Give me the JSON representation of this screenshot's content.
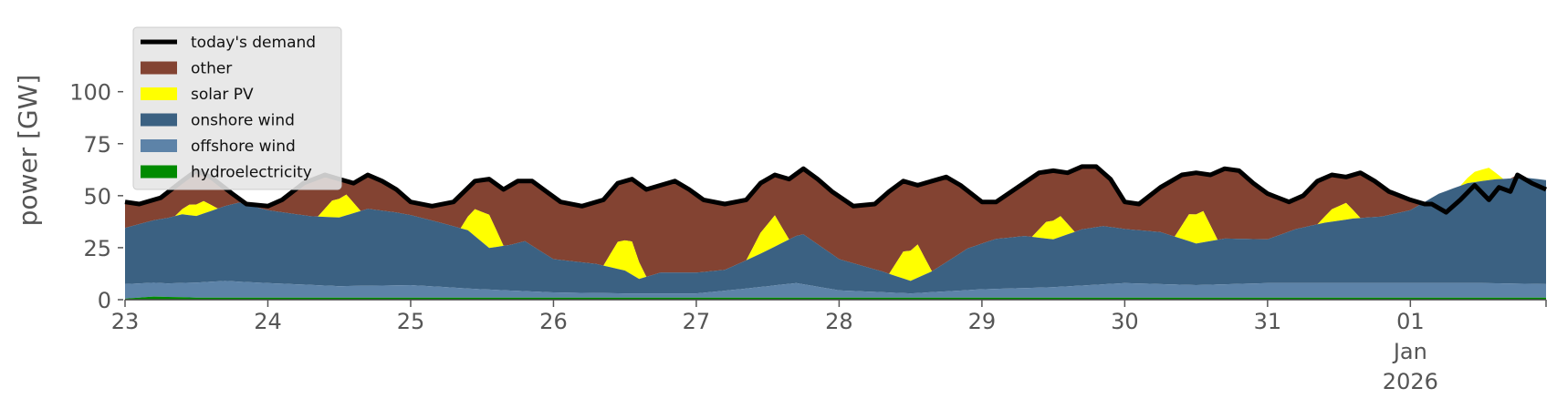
{
  "colors": {
    "demand": "#000000",
    "other": "#834332",
    "solar": "#ffff00",
    "onshore": "#3b6182",
    "offshore": "#5d83a8",
    "hydro": "#008b00",
    "tick_text": "#555555",
    "legend_bg": "#e5e5e5"
  },
  "chart_data": {
    "type": "area",
    "title": "",
    "xlabel": "",
    "ylabel": "power [GW]",
    "ylim": [
      0,
      120
    ],
    "yticks": [
      0,
      25,
      50,
      75,
      100
    ],
    "xlim": [
      0,
      9.95
    ],
    "xtick_labels": [
      {
        "x": 0,
        "lines": [
          "23"
        ]
      },
      {
        "x": 1,
        "lines": [
          "24"
        ]
      },
      {
        "x": 2,
        "lines": [
          "25"
        ]
      },
      {
        "x": 3,
        "lines": [
          "26"
        ]
      },
      {
        "x": 4,
        "lines": [
          "27"
        ]
      },
      {
        "x": 5,
        "lines": [
          "28"
        ]
      },
      {
        "x": 6,
        "lines": [
          "29"
        ]
      },
      {
        "x": 7,
        "lines": [
          "30"
        ]
      },
      {
        "x": 8,
        "lines": [
          "31"
        ]
      },
      {
        "x": 9,
        "lines": [
          "01",
          "Jan",
          "2026"
        ]
      }
    ],
    "grid": false,
    "legend_placement": "top-left",
    "legend": [
      {
        "label": "today's demand",
        "series": "demand",
        "kind": "line"
      },
      {
        "label": "other",
        "series": "other",
        "kind": "patch"
      },
      {
        "label": "solar PV",
        "series": "solar",
        "kind": "patch"
      },
      {
        "label": "onshore wind",
        "series": "onshore",
        "kind": "patch"
      },
      {
        "label": "offshore wind",
        "series": "offshore",
        "kind": "patch"
      },
      {
        "label": "hydroelectricity",
        "series": "hydro",
        "kind": "patch"
      }
    ],
    "stacked_areas_order": [
      "hydro",
      "offshore",
      "onshore",
      "solar",
      "other"
    ],
    "series": {
      "demand": [
        [
          0,
          47
        ],
        [
          0.1,
          46
        ],
        [
          0.25,
          49
        ],
        [
          0.4,
          57
        ],
        [
          0.5,
          62
        ],
        [
          0.6,
          59
        ],
        [
          0.75,
          51
        ],
        [
          0.85,
          46
        ],
        [
          1.0,
          45
        ],
        [
          1.1,
          48
        ],
        [
          1.25,
          56
        ],
        [
          1.4,
          60
        ],
        [
          1.5,
          58
        ],
        [
          1.6,
          56
        ],
        [
          1.7,
          60
        ],
        [
          1.8,
          57
        ],
        [
          1.9,
          53
        ],
        [
          2.0,
          47
        ],
        [
          2.15,
          45
        ],
        [
          2.3,
          47
        ],
        [
          2.45,
          57
        ],
        [
          2.55,
          58
        ],
        [
          2.65,
          53
        ],
        [
          2.75,
          57
        ],
        [
          2.85,
          57
        ],
        [
          2.95,
          52
        ],
        [
          3.05,
          47
        ],
        [
          3.2,
          45
        ],
        [
          3.35,
          48
        ],
        [
          3.45,
          56
        ],
        [
          3.55,
          58
        ],
        [
          3.65,
          53
        ],
        [
          3.75,
          55
        ],
        [
          3.85,
          57
        ],
        [
          3.95,
          53
        ],
        [
          4.05,
          48
        ],
        [
          4.2,
          46
        ],
        [
          4.35,
          48
        ],
        [
          4.45,
          56
        ],
        [
          4.55,
          60
        ],
        [
          4.65,
          58
        ],
        [
          4.75,
          63
        ],
        [
          4.85,
          58
        ],
        [
          4.95,
          52
        ],
        [
          5.1,
          45
        ],
        [
          5.25,
          46
        ],
        [
          5.35,
          52
        ],
        [
          5.45,
          57
        ],
        [
          5.55,
          55
        ],
        [
          5.65,
          57
        ],
        [
          5.75,
          59
        ],
        [
          5.85,
          55
        ],
        [
          6.0,
          47
        ],
        [
          6.1,
          47
        ],
        [
          6.25,
          54
        ],
        [
          6.4,
          61
        ],
        [
          6.5,
          62
        ],
        [
          6.6,
          61
        ],
        [
          6.7,
          64
        ],
        [
          6.8,
          64
        ],
        [
          6.9,
          58
        ],
        [
          7.0,
          47
        ],
        [
          7.1,
          46
        ],
        [
          7.25,
          54
        ],
        [
          7.4,
          60
        ],
        [
          7.5,
          61
        ],
        [
          7.6,
          60
        ],
        [
          7.7,
          63
        ],
        [
          7.8,
          62
        ],
        [
          7.9,
          56
        ],
        [
          8.0,
          51
        ],
        [
          8.15,
          47
        ],
        [
          8.25,
          50
        ],
        [
          8.35,
          57
        ],
        [
          8.45,
          60
        ],
        [
          8.55,
          59
        ],
        [
          8.65,
          61
        ],
        [
          8.75,
          57
        ],
        [
          8.85,
          52
        ],
        [
          9.0,
          48
        ],
        [
          9.1,
          46
        ],
        [
          9.15,
          46
        ],
        [
          9.25,
          42
        ],
        [
          9.35,
          48
        ],
        [
          9.45,
          55
        ],
        [
          9.55,
          48
        ],
        [
          9.62,
          54
        ],
        [
          9.7,
          52
        ],
        [
          9.75,
          60
        ],
        [
          9.85,
          56
        ],
        [
          9.95,
          53
        ]
      ],
      "hydro": [
        [
          0,
          0.5
        ],
        [
          0.2,
          1.5
        ],
        [
          0.5,
          1
        ],
        [
          1.0,
          1
        ],
        [
          2.0,
          1
        ],
        [
          3.0,
          1
        ],
        [
          4.0,
          1
        ],
        [
          5.0,
          1
        ],
        [
          6.0,
          1
        ],
        [
          7.0,
          1
        ],
        [
          8.0,
          1
        ],
        [
          9.0,
          1
        ],
        [
          9.95,
          1
        ]
      ],
      "offshore": [
        [
          0,
          7
        ],
        [
          0.3,
          6.5
        ],
        [
          0.7,
          8
        ],
        [
          1.0,
          7
        ],
        [
          1.5,
          5.5
        ],
        [
          2.0,
          6
        ],
        [
          2.5,
          4
        ],
        [
          3.0,
          2.5
        ],
        [
          3.5,
          2
        ],
        [
          4.0,
          2
        ],
        [
          4.3,
          4
        ],
        [
          4.7,
          7
        ],
        [
          5.0,
          3.5
        ],
        [
          5.5,
          2
        ],
        [
          6.0,
          4
        ],
        [
          6.5,
          5
        ],
        [
          7.0,
          7
        ],
        [
          7.5,
          6
        ],
        [
          8.0,
          7
        ],
        [
          8.5,
          7
        ],
        [
          9.0,
          7
        ],
        [
          9.5,
          7
        ],
        [
          9.95,
          6.5
        ]
      ],
      "onshore": [
        [
          0,
          27
        ],
        [
          0.4,
          33
        ],
        [
          0.5,
          32
        ],
        [
          0.65,
          35
        ],
        [
          0.8,
          38
        ],
        [
          1.0,
          35
        ],
        [
          1.3,
          33
        ],
        [
          1.5,
          33
        ],
        [
          1.7,
          37
        ],
        [
          1.9,
          35
        ],
        [
          2.2,
          31
        ],
        [
          2.4,
          28
        ],
        [
          2.55,
          20
        ],
        [
          2.7,
          22
        ],
        [
          2.8,
          24
        ],
        [
          3.0,
          16
        ],
        [
          3.3,
          14
        ],
        [
          3.5,
          11
        ],
        [
          3.6,
          7
        ],
        [
          3.75,
          10
        ],
        [
          4.0,
          10
        ],
        [
          4.2,
          10
        ],
        [
          4.45,
          16
        ],
        [
          4.6,
          20
        ],
        [
          4.75,
          24
        ],
        [
          5.0,
          15
        ],
        [
          5.3,
          10
        ],
        [
          5.5,
          6
        ],
        [
          5.65,
          10
        ],
        [
          5.9,
          20
        ],
        [
          6.1,
          24
        ],
        [
          6.3,
          25
        ],
        [
          6.5,
          23
        ],
        [
          6.7,
          27
        ],
        [
          6.85,
          28
        ],
        [
          7.0,
          26
        ],
        [
          7.25,
          25
        ],
        [
          7.5,
          20
        ],
        [
          7.7,
          22
        ],
        [
          8.0,
          21
        ],
        [
          8.2,
          26
        ],
        [
          8.4,
          29
        ],
        [
          8.6,
          31
        ],
        [
          8.8,
          32
        ],
        [
          9.0,
          35
        ],
        [
          9.2,
          43
        ],
        [
          9.4,
          48
        ],
        [
          9.6,
          50
        ],
        [
          9.8,
          51
        ],
        [
          9.95,
          50
        ]
      ],
      "solar": [
        [
          0,
          0
        ],
        [
          0.35,
          0
        ],
        [
          0.45,
          5
        ],
        [
          0.55,
          6
        ],
        [
          0.65,
          0
        ],
        [
          1.35,
          0
        ],
        [
          1.45,
          8
        ],
        [
          1.55,
          10
        ],
        [
          1.65,
          0
        ],
        [
          2.35,
          0
        ],
        [
          2.45,
          13
        ],
        [
          2.55,
          16
        ],
        [
          2.65,
          0
        ],
        [
          3.35,
          0
        ],
        [
          3.45,
          13
        ],
        [
          3.55,
          16
        ],
        [
          3.65,
          0
        ],
        [
          4.35,
          0
        ],
        [
          4.45,
          10
        ],
        [
          4.55,
          15
        ],
        [
          4.65,
          0
        ],
        [
          5.35,
          0
        ],
        [
          5.45,
          13
        ],
        [
          5.55,
          16
        ],
        [
          5.65,
          0
        ],
        [
          6.35,
          0
        ],
        [
          6.45,
          8
        ],
        [
          6.55,
          10
        ],
        [
          6.65,
          0
        ],
        [
          7.35,
          0
        ],
        [
          7.45,
          13
        ],
        [
          7.55,
          15
        ],
        [
          7.65,
          0
        ],
        [
          8.35,
          0
        ],
        [
          8.45,
          6
        ],
        [
          8.55,
          8
        ],
        [
          8.65,
          0
        ],
        [
          9.35,
          0
        ],
        [
          9.45,
          5
        ],
        [
          9.55,
          6
        ],
        [
          9.65,
          0
        ],
        [
          9.95,
          0
        ]
      ]
    }
  }
}
